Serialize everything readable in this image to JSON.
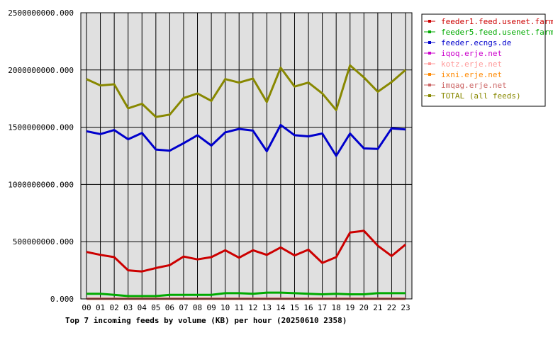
{
  "chart_data": {
    "type": "line",
    "caption": "Top 7 incoming feeds by volume (KB) per hour (20250610 2358)",
    "categories": [
      "00",
      "01",
      "02",
      "03",
      "04",
      "05",
      "06",
      "07",
      "08",
      "09",
      "10",
      "11",
      "12",
      "13",
      "14",
      "15",
      "16",
      "17",
      "18",
      "19",
      "20",
      "21",
      "22",
      "23"
    ],
    "ylim": [
      0,
      2500000000
    ],
    "yticks": [
      0,
      500000000,
      1000000000,
      1500000000,
      2000000000,
      2500000000
    ],
    "ytick_labels": [
      "0.000",
      "500000000.000",
      "1000000000.000",
      "1500000000.000",
      "2000000000.000",
      "2500000000.000"
    ],
    "grid": true,
    "legend_position": "top-right",
    "series": [
      {
        "name": "feeder1.feed.usenet.farm",
        "color": "#cc0000",
        "values": [
          410000000,
          385000000,
          365000000,
          250000000,
          240000000,
          270000000,
          295000000,
          370000000,
          345000000,
          365000000,
          425000000,
          360000000,
          425000000,
          385000000,
          450000000,
          380000000,
          430000000,
          315000000,
          365000000,
          580000000,
          595000000,
          465000000,
          375000000,
          475000000
        ]
      },
      {
        "name": "feeder5.feed.usenet.farm",
        "color": "#00aa00",
        "values": [
          45000000,
          45000000,
          35000000,
          25000000,
          25000000,
          25000000,
          35000000,
          35000000,
          35000000,
          35000000,
          50000000,
          50000000,
          45000000,
          55000000,
          55000000,
          50000000,
          45000000,
          40000000,
          45000000,
          40000000,
          40000000,
          50000000,
          50000000,
          50000000
        ]
      },
      {
        "name": "feeder.ecngs.de",
        "color": "#0000cc",
        "values": [
          1465000000,
          1440000000,
          1475000000,
          1395000000,
          1450000000,
          1305000000,
          1295000000,
          1360000000,
          1430000000,
          1340000000,
          1455000000,
          1485000000,
          1470000000,
          1290000000,
          1520000000,
          1430000000,
          1420000000,
          1445000000,
          1250000000,
          1445000000,
          1315000000,
          1310000000,
          1490000000,
          1480000000
        ]
      },
      {
        "name": "iqoq.erje.net",
        "color": "#cc00cc",
        "values": [
          3000000,
          3000000,
          3000000,
          3000000,
          3000000,
          3000000,
          3000000,
          3000000,
          3000000,
          3000000,
          3000000,
          3000000,
          3000000,
          3000000,
          3000000,
          3000000,
          3000000,
          3000000,
          3000000,
          3000000,
          3000000,
          3000000,
          3000000,
          3000000
        ]
      },
      {
        "name": "kotz.erje.net",
        "color": "#ff9999",
        "values": [
          2000000,
          2000000,
          2000000,
          2000000,
          2000000,
          2000000,
          2000000,
          2000000,
          2000000,
          2000000,
          2000000,
          2000000,
          2000000,
          2000000,
          2000000,
          2000000,
          2000000,
          2000000,
          2000000,
          2000000,
          2000000,
          2000000,
          2000000,
          2000000
        ]
      },
      {
        "name": "ixni.erje.net",
        "color": "#ff8800",
        "values": [
          1000000,
          1000000,
          1000000,
          1000000,
          1000000,
          1000000,
          1000000,
          1000000,
          1000000,
          1000000,
          1000000,
          1000000,
          1000000,
          1000000,
          1000000,
          1000000,
          1000000,
          1000000,
          1000000,
          1000000,
          1000000,
          1000000,
          1000000,
          1000000
        ]
      },
      {
        "name": "imqag.erje.net",
        "color": "#cc6666",
        "values": [
          1000000,
          1000000,
          1000000,
          1000000,
          1000000,
          1000000,
          1000000,
          1000000,
          1000000,
          1000000,
          1000000,
          1000000,
          1000000,
          1000000,
          1000000,
          1000000,
          1000000,
          1000000,
          1000000,
          1000000,
          1000000,
          1000000,
          1000000,
          1000000
        ]
      },
      {
        "name": "TOTAL (all feeds)",
        "color": "#888800",
        "values": [
          1920000000,
          1865000000,
          1875000000,
          1665000000,
          1705000000,
          1590000000,
          1610000000,
          1755000000,
          1795000000,
          1730000000,
          1920000000,
          1890000000,
          1925000000,
          1720000000,
          2020000000,
          1855000000,
          1890000000,
          1795000000,
          1650000000,
          2040000000,
          1935000000,
          1810000000,
          1895000000,
          2000000000
        ]
      }
    ]
  }
}
